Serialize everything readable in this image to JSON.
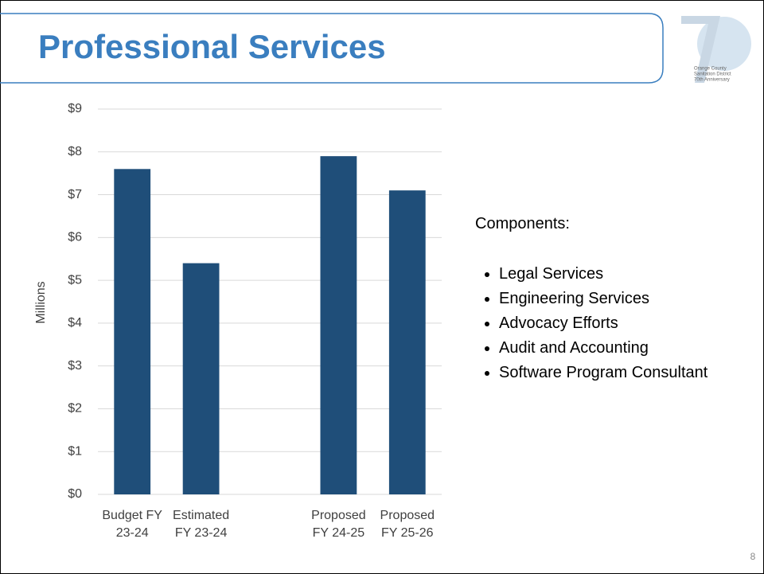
{
  "slide": {
    "title": "Professional Services",
    "logo_text": [
      "Orange County",
      "Sanitation District",
      "70th Anniversary"
    ],
    "components_heading": "Components:",
    "components": [
      "Legal Services",
      "Engineering Services",
      "Advocacy Efforts",
      "Audit and Accounting",
      "Software Program Consultant"
    ],
    "page_number": "8"
  },
  "chart_data": {
    "type": "bar",
    "y_label": "Millions",
    "categories": [
      "Budget FY 23-24",
      "Estimated FY 23-24",
      null,
      "Proposed FY 24-25",
      "Proposed FY 25-26"
    ],
    "values": [
      7.6,
      5.4,
      null,
      7.9,
      7.1
    ],
    "color": "#1f4e79",
    "ylim": [
      0,
      9
    ],
    "yticks": [
      {
        "value": 0,
        "label": "$0"
      },
      {
        "value": 1,
        "label": "$1"
      },
      {
        "value": 2,
        "label": "$2"
      },
      {
        "value": 3,
        "label": "$3"
      },
      {
        "value": 4,
        "label": "$4"
      },
      {
        "value": 5,
        "label": "$5"
      },
      {
        "value": 6,
        "label": "$6"
      },
      {
        "value": 7,
        "label": "$7"
      },
      {
        "value": 8,
        "label": "$8"
      },
      {
        "value": 9,
        "label": "$9"
      }
    ],
    "grid": true
  }
}
